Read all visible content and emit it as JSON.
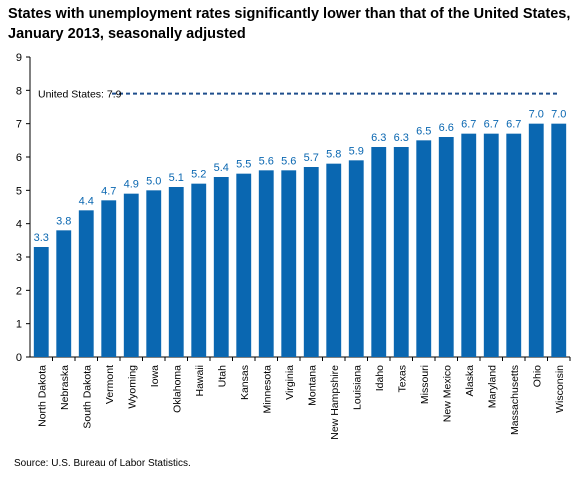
{
  "title": "States with unemployment rates significantly lower than that of the United States, January 2013, seasonally adjusted",
  "source": "Source: U.S. Bureau of Labor Statistics.",
  "chart_data": {
    "type": "bar",
    "title": "States with unemployment rates significantly lower than that of the United States, January 2013, seasonally adjusted",
    "xlabel": "",
    "ylabel": "",
    "ylim": [
      0,
      9
    ],
    "yticks": [
      0,
      1,
      2,
      3,
      4,
      5,
      6,
      7,
      8,
      9
    ],
    "categories": [
      "North Dakota",
      "Nebraska",
      "South Dakota",
      "Vermont",
      "Wyoming",
      "Iowa",
      "Oklahoma",
      "Hawaii",
      "Utah",
      "Kansas",
      "Minnesota",
      "Virginia",
      "Montana",
      "New Hampshire",
      "Louisiana",
      "Idaho",
      "Texas",
      "Missouri",
      "New Mexico",
      "Alaska",
      "Maryland",
      "Massachusetts",
      "Ohio",
      "Wisconsin"
    ],
    "values": [
      3.3,
      3.8,
      4.4,
      4.7,
      4.9,
      5.0,
      5.1,
      5.2,
      5.4,
      5.5,
      5.6,
      5.6,
      5.7,
      5.8,
      5.9,
      6.3,
      6.3,
      6.5,
      6.6,
      6.7,
      6.7,
      6.7,
      7.0,
      7.0
    ],
    "value_labels": [
      "3.3",
      "3.8",
      "4.4",
      "4.7",
      "4.9",
      "5.0",
      "5.1",
      "5.2",
      "5.4",
      "5.5",
      "5.6",
      "5.6",
      "5.7",
      "5.8",
      "5.9",
      "6.3",
      "6.3",
      "6.5",
      "6.6",
      "6.7",
      "6.7",
      "6.7",
      "7.0",
      "7.0"
    ],
    "reference_line": {
      "label": "United States: 7.9",
      "value": 7.9
    },
    "bar_color": "#0a67b1",
    "reference_color": "#1f4e8c",
    "grid": false,
    "legend": "none"
  }
}
